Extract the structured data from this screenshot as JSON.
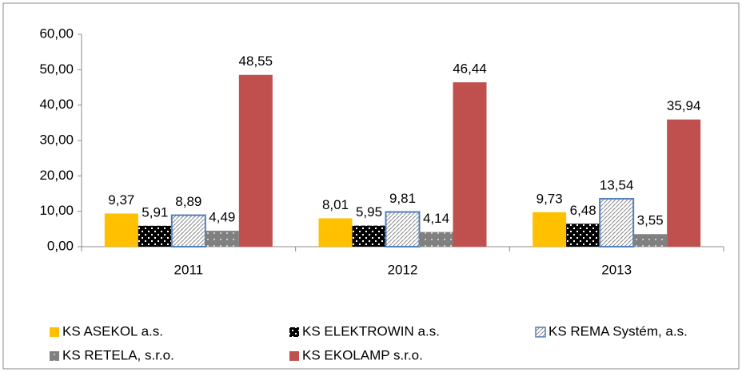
{
  "chart_data": {
    "type": "bar",
    "categories": [
      "2011",
      "2012",
      "2013"
    ],
    "series": [
      {
        "name": "KS ASEKOL a.s.",
        "color": "#FFC000",
        "values": [
          9.37,
          8.01,
          9.73
        ],
        "value_labels": [
          "9,37",
          "8,01",
          "9,73"
        ]
      },
      {
        "name": "KS ELEKTROWIN a.s.",
        "color": "#000000",
        "values": [
          5.91,
          5.95,
          6.48
        ],
        "value_labels": [
          "5,91",
          "5,95",
          "6,48"
        ]
      },
      {
        "name": "KS REMA Systém, a.s.",
        "color": "#4F81BD",
        "values": [
          8.89,
          9.81,
          13.54
        ],
        "value_labels": [
          "8,89",
          "9,81",
          "13,54"
        ]
      },
      {
        "name": "KS RETELA, s.r.o.",
        "color": "#808080",
        "values": [
          4.49,
          4.14,
          3.55
        ],
        "value_labels": [
          "4,49",
          "4,14",
          "3,55"
        ]
      },
      {
        "name": "KS EKOLAMP s.r.o.",
        "color": "#C0504D",
        "values": [
          48.55,
          46.44,
          35.94
        ],
        "value_labels": [
          "48,55",
          "46,44",
          "35,94"
        ]
      }
    ],
    "ylim": [
      0,
      60
    ],
    "yticks": [
      {
        "value": 0,
        "label": "0,00"
      },
      {
        "value": 10,
        "label": "10,00"
      },
      {
        "value": 20,
        "label": "20,00"
      },
      {
        "value": 30,
        "label": "30,00"
      },
      {
        "value": 40,
        "label": "40,00"
      },
      {
        "value": 50,
        "label": "50,00"
      },
      {
        "value": 60,
        "label": "60,00"
      }
    ],
    "legend": "bottom"
  }
}
